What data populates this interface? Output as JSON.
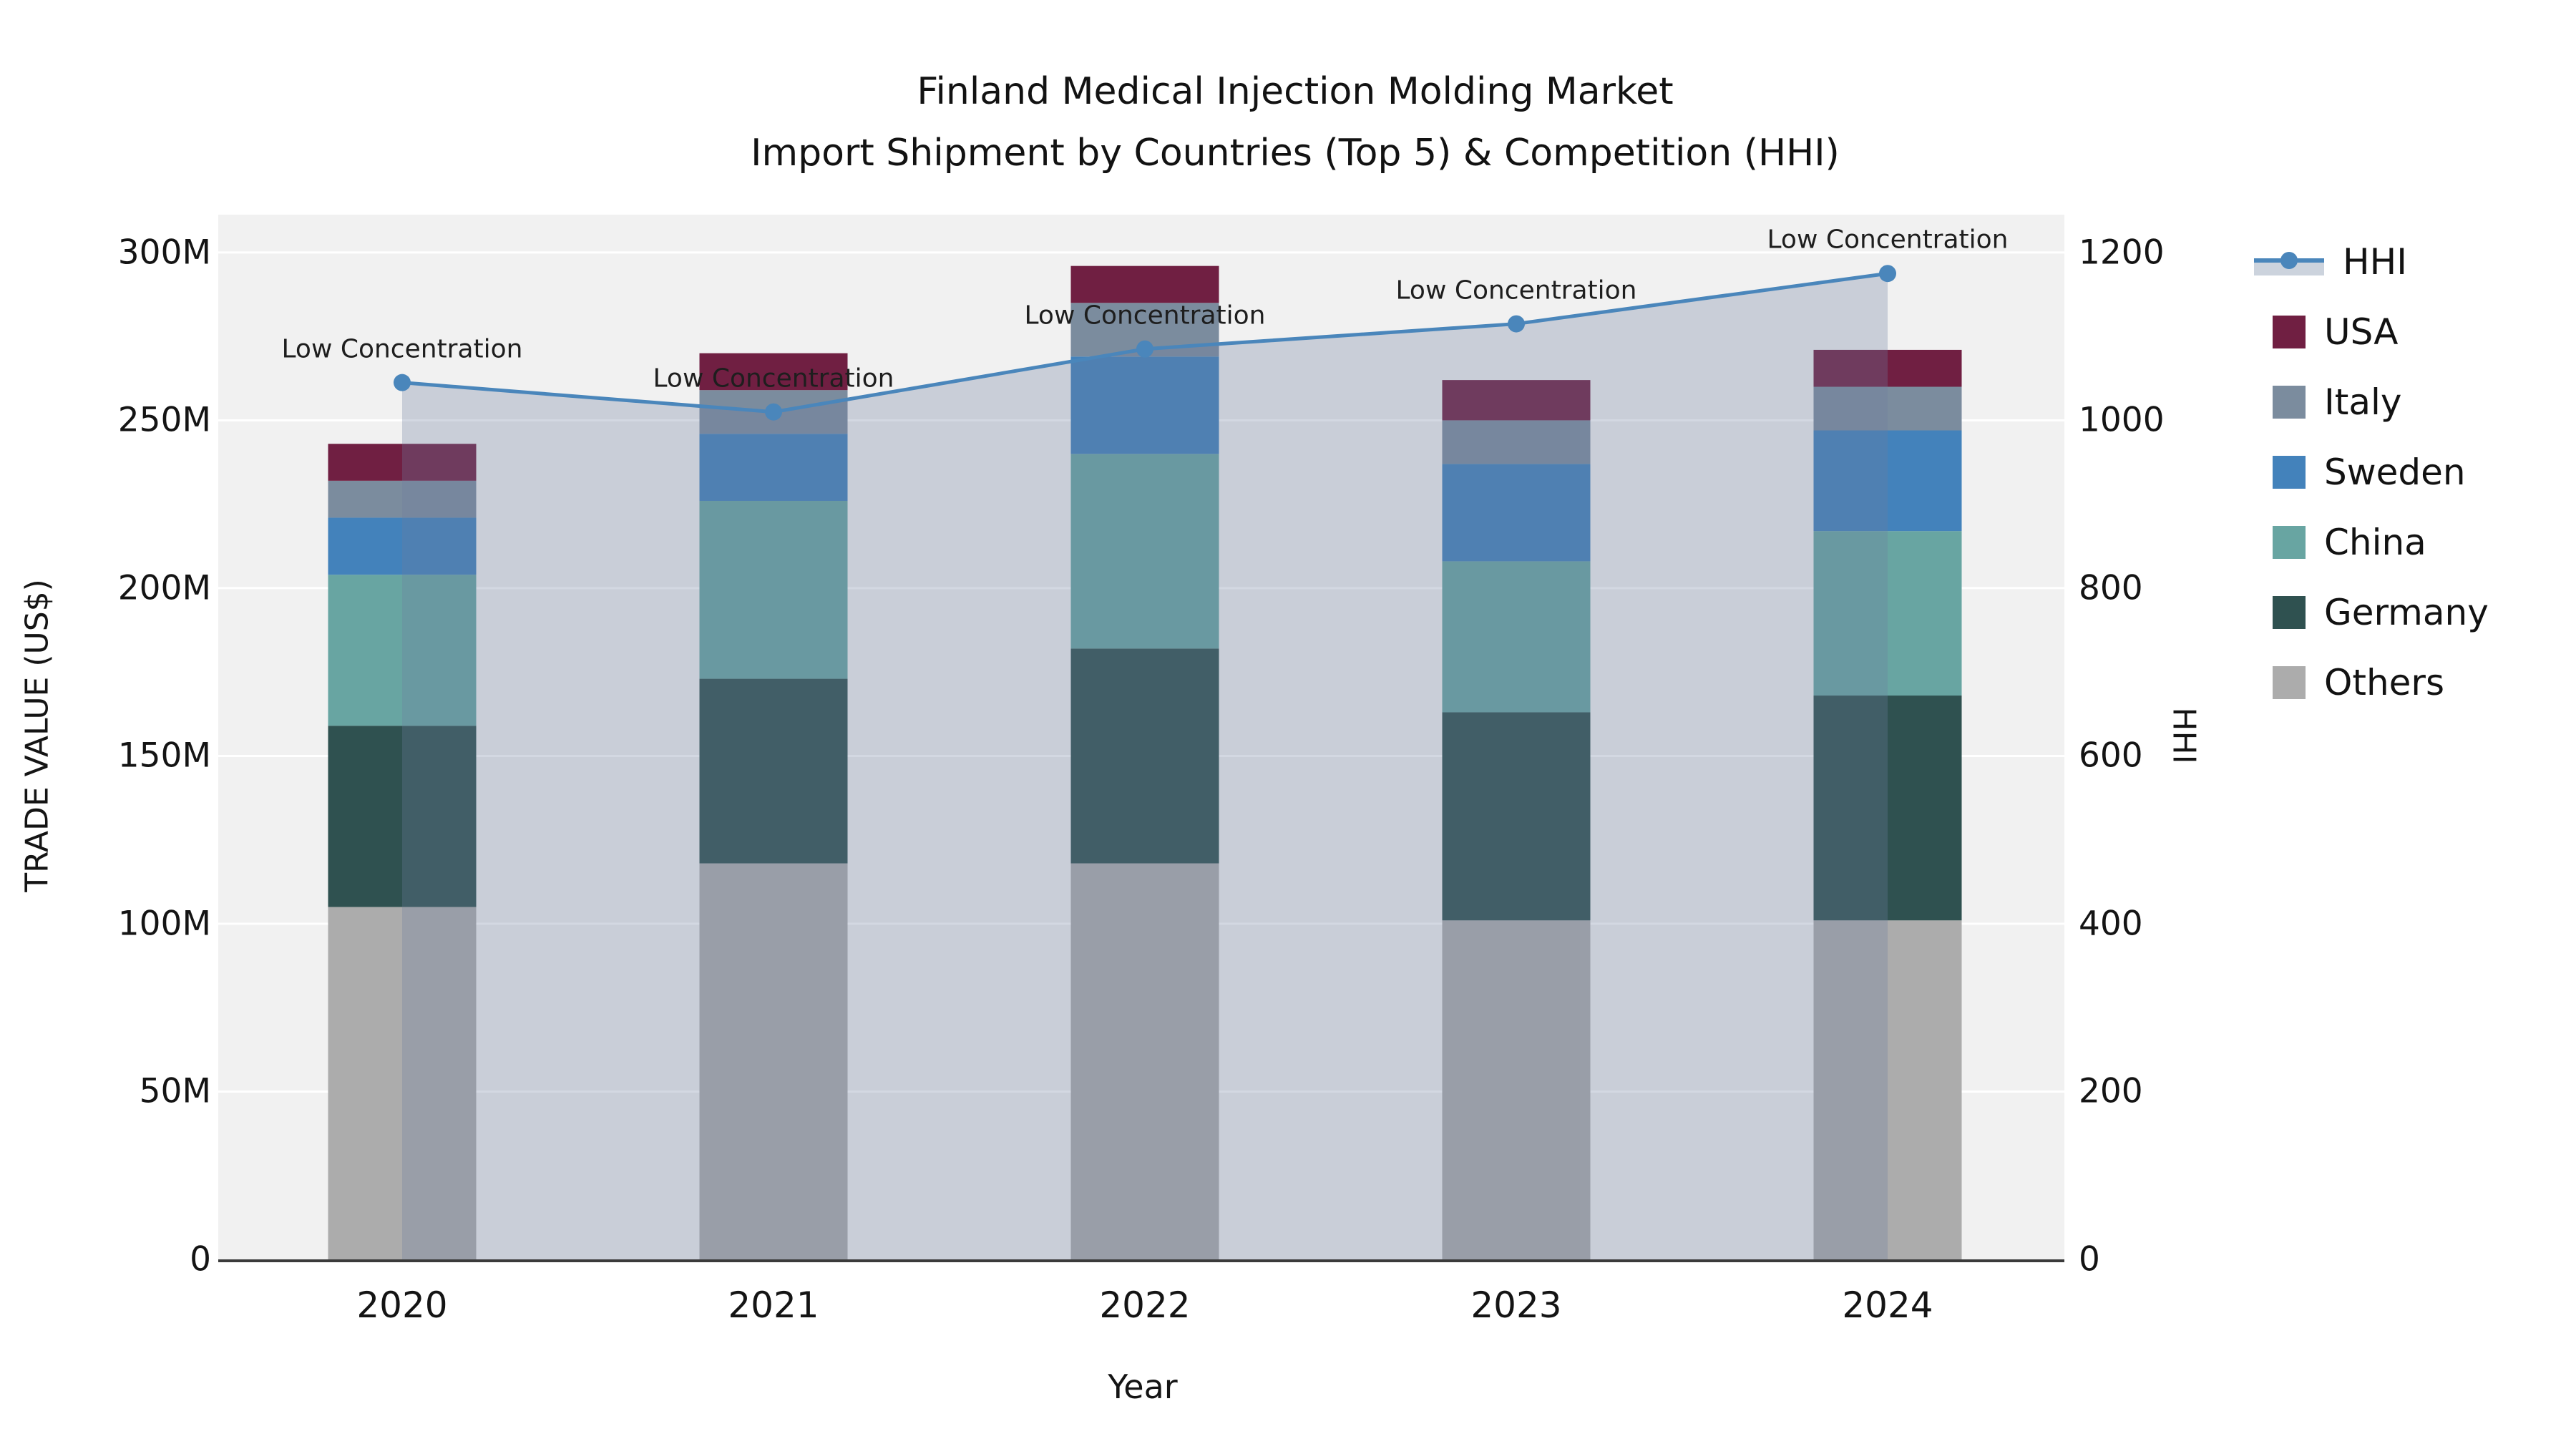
{
  "title": {
    "line1": "Finland Medical Injection Molding Market",
    "line2": "Import Shipment by Countries (Top 5) & Competition (HHI)"
  },
  "axes": {
    "x_label": "Year",
    "y_left_label": "TRADE VALUE (US$)",
    "y_right_label": "HHI"
  },
  "legend": {
    "items": [
      {
        "label": "HHI",
        "swatch": "line",
        "color": "#4a86bb",
        "band_color": "#ccd3dd"
      },
      {
        "label": "USA",
        "swatch": "square",
        "color": "#701f42"
      },
      {
        "label": "Italy",
        "swatch": "square",
        "color": "#7b8c9e"
      },
      {
        "label": "Sweden",
        "swatch": "square",
        "color": "#4382bb"
      },
      {
        "label": "China",
        "swatch": "square",
        "color": "#68a5a2"
      },
      {
        "label": "Germany",
        "swatch": "square",
        "color": "#2f5150"
      },
      {
        "label": "Others",
        "swatch": "square",
        "color": "#acacac"
      }
    ]
  },
  "chart_data": {
    "type": "bar+line",
    "title": "Finland Medical Injection Molding Market — Import Shipment by Countries (Top 5) & Competition (HHI)",
    "categories": [
      "2020",
      "2021",
      "2022",
      "2023",
      "2024"
    ],
    "bar_value_unit": "million US$",
    "stack_order_bottom_to_top": [
      "Others",
      "Germany",
      "China",
      "Sweden",
      "Italy",
      "USA"
    ],
    "series": [
      {
        "name": "Others",
        "color": "#acacac",
        "values": [
          105,
          118,
          118,
          101,
          101
        ]
      },
      {
        "name": "Germany",
        "color": "#2f5150",
        "values": [
          54,
          55,
          64,
          62,
          67
        ]
      },
      {
        "name": "China",
        "color": "#68a5a2",
        "values": [
          45,
          53,
          58,
          45,
          49
        ]
      },
      {
        "name": "Sweden",
        "color": "#4382bb",
        "values": [
          17,
          20,
          29,
          29,
          30
        ]
      },
      {
        "name": "Italy",
        "color": "#7b8c9e",
        "values": [
          11,
          13,
          16,
          13,
          13
        ]
      },
      {
        "name": "USA",
        "color": "#701f42",
        "values": [
          11,
          11,
          11,
          12,
          11
        ]
      }
    ],
    "bar_totals": [
      243,
      270,
      296,
      262,
      271
    ],
    "line_series": {
      "name": "HHI",
      "values": [
        1045,
        1010,
        1085,
        1115,
        1175
      ],
      "color": "#4a86bb",
      "area_fill": "rgba(110,127,160,0.30)",
      "axis": "right"
    },
    "annotations": [
      {
        "text": "Low Concentration",
        "x": "2020"
      },
      {
        "text": "Low Concentration",
        "x": "2021"
      },
      {
        "text": "Low Concentration",
        "x": "2022"
      },
      {
        "text": "Low Concentration",
        "x": "2023"
      },
      {
        "text": "Low Concentration",
        "x": "2024"
      }
    ],
    "y_left": {
      "label": "TRADE VALUE (US$)",
      "tick_labels": [
        "0",
        "50M",
        "100M",
        "150M",
        "200M",
        "250M",
        "300M"
      ],
      "tick_values": [
        0,
        50,
        100,
        150,
        200,
        250,
        300
      ],
      "range": [
        0,
        310
      ]
    },
    "y_right": {
      "label": "HHI",
      "tick_labels": [
        "0",
        "200",
        "400",
        "600",
        "800",
        "1000",
        "1200"
      ],
      "tick_values": [
        0,
        200,
        400,
        600,
        800,
        1000,
        1200
      ],
      "range": [
        0,
        1240
      ]
    },
    "xlabel": "Year",
    "grid": "horizontal-white",
    "plot_background": "#f1f1f1",
    "legend_position": "outside-right"
  }
}
